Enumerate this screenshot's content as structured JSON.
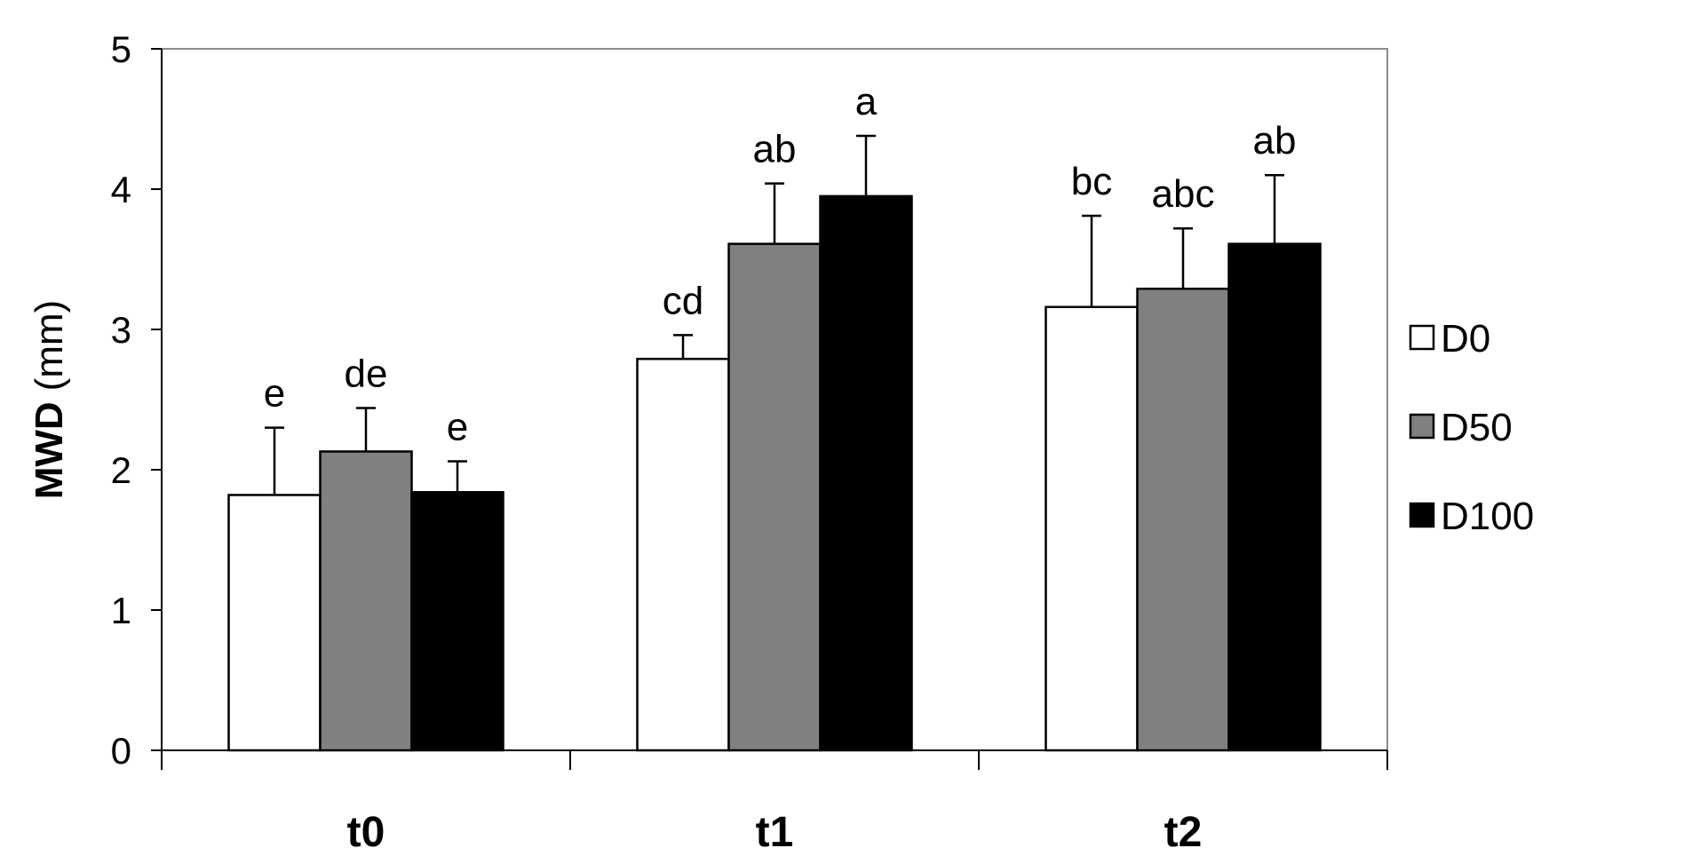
{
  "chart_data": {
    "type": "bar",
    "categories": [
      "t0",
      "t1",
      "t2"
    ],
    "ylabel": "MWD",
    "yunit": "(mm)",
    "ylim": [
      0,
      5
    ],
    "yticks": [
      0,
      1,
      2,
      3,
      4,
      5
    ],
    "grid": false,
    "legend_position": "right",
    "series": [
      {
        "name": "D0",
        "color": "#ffffff",
        "values": [
          1.82,
          2.79,
          3.16
        ],
        "errors": [
          0.48,
          0.17,
          0.65
        ],
        "letters": [
          "e",
          "cd",
          "bc"
        ]
      },
      {
        "name": "D50",
        "color": "#808080",
        "values": [
          2.13,
          3.61,
          3.29
        ],
        "errors": [
          0.31,
          0.43,
          0.43
        ],
        "letters": [
          "de",
          "ab",
          "abc"
        ]
      },
      {
        "name": "D100",
        "color": "#000000",
        "values": [
          1.84,
          3.95,
          3.61
        ],
        "errors": [
          0.22,
          0.43,
          0.49
        ],
        "letters": [
          "e",
          "a",
          "ab"
        ]
      }
    ]
  }
}
